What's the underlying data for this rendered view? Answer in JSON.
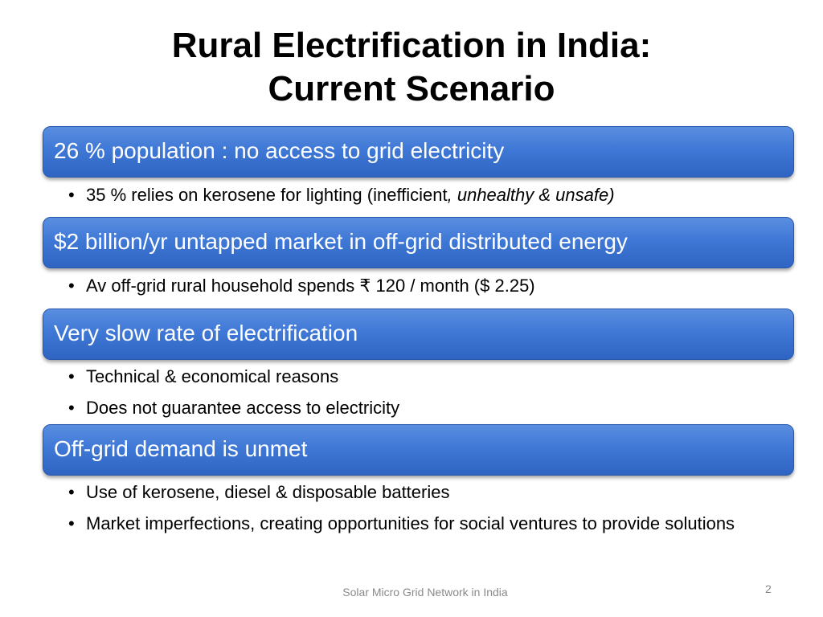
{
  "title": {
    "line1": "Rural Electrification in India:",
    "line2": "Current Scenario"
  },
  "sections": [
    {
      "heading": "26 % population : no access to grid electricity",
      "bullets": [
        {
          "text": "35 % relies on kerosene for lighting (inefficient",
          "emphasis": ", unhealthy & unsafe)"
        }
      ]
    },
    {
      "heading": "$2 billion/yr untapped market in off-grid distributed energy",
      "bullets": [
        {
          "text": "Av off-grid rural household spends ₹ 120 / month ($ 2.25)"
        }
      ]
    },
    {
      "heading": "Very slow rate of electrification",
      "bullets": [
        {
          "text": "Technical & economical reasons"
        },
        {
          "text": "Does not guarantee access to electricity"
        }
      ]
    },
    {
      "heading": "Off-grid demand is unmet",
      "bullets": [
        {
          "text": "Use of kerosene, diesel & disposable batteries"
        },
        {
          "text": "Market imperfections, creating opportunities for social ventures to provide solutions"
        }
      ]
    }
  ],
  "footer": {
    "text": "Solar Micro Grid Network in India",
    "page_number": "2"
  },
  "colors": {
    "bar_fill": "#3f78d6",
    "bar_text": "#ffffff",
    "footer_text": "#8a8a8a"
  }
}
